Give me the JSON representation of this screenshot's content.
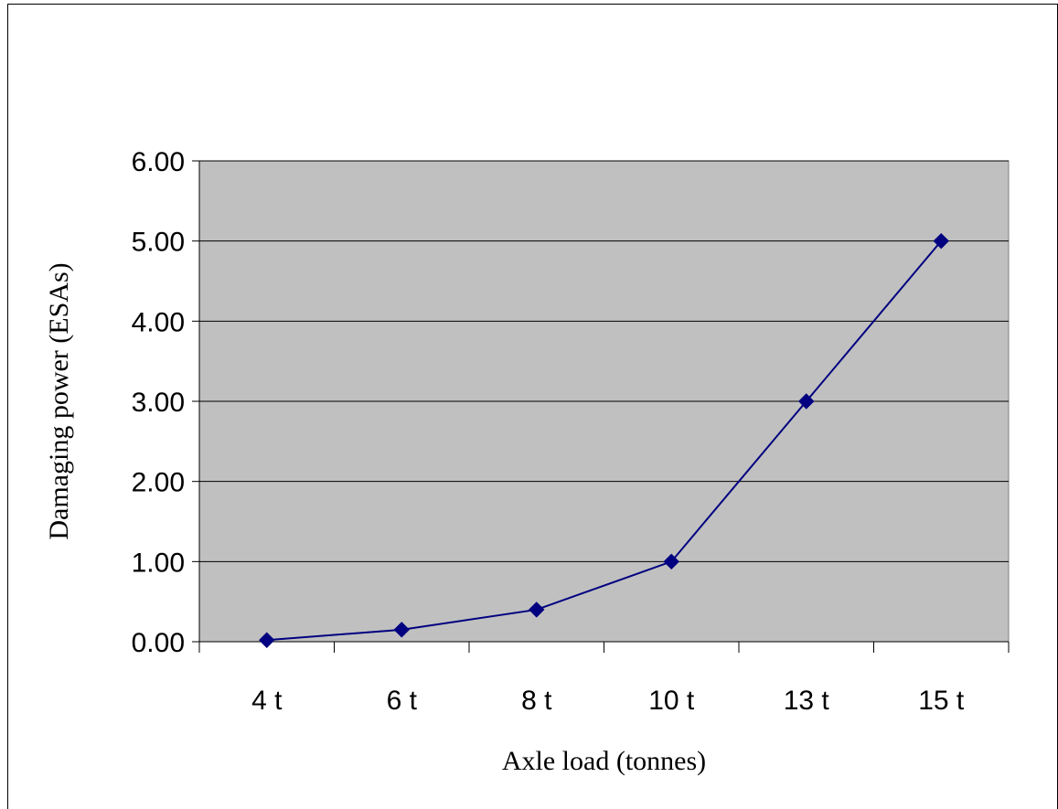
{
  "chart_data": {
    "type": "line",
    "title": "",
    "xlabel": "Axle load (tonnes)",
    "ylabel": "Damaging power (ESAs)",
    "categories": [
      "4 t",
      "6 t",
      "8 t",
      "10 t",
      "13 t",
      "15 t"
    ],
    "series": [
      {
        "values": [
          0.02,
          0.15,
          0.4,
          1.0,
          3.0,
          5.0
        ]
      }
    ],
    "ylim": [
      0,
      6
    ],
    "yticks": [
      "0.00",
      "1.00",
      "2.00",
      "3.00",
      "4.00",
      "5.00",
      "6.00"
    ],
    "grid": "horizontal",
    "legend": "none",
    "colors": {
      "plot_background": "#c0c0c0",
      "series": "#000080",
      "gridline": "#000000"
    }
  }
}
